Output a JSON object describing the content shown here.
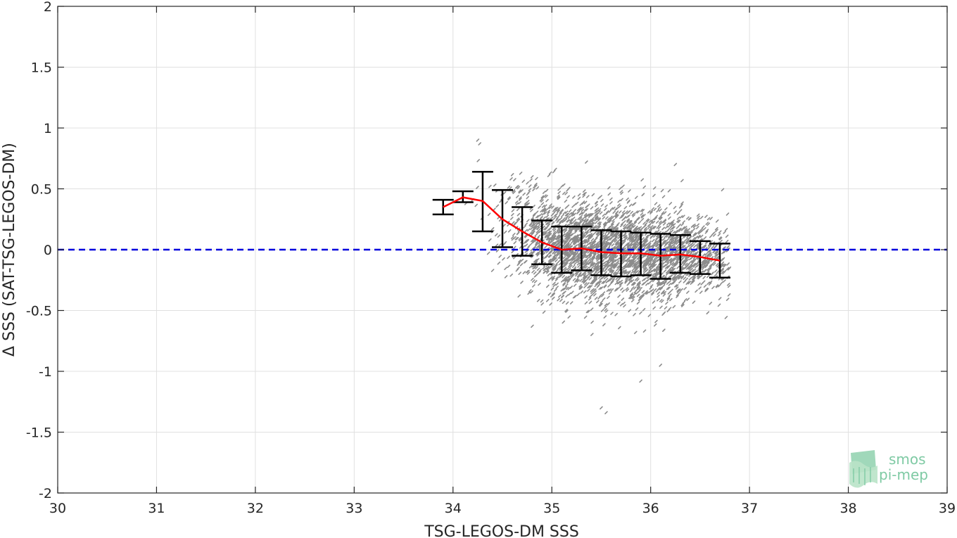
{
  "colors": {
    "scatter": "#8c8c8c",
    "mean_line": "#ff0000",
    "error_bars": "#000000",
    "zero_line": "#0000dd",
    "grid": "#e0e0e0",
    "axis": "#262626",
    "logo": "#7fcaa4"
  },
  "logo": {
    "line1": "smos",
    "line2": "pi-mep"
  },
  "chart_data": {
    "type": "scatter",
    "xlabel": "TSG-LEGOS-DM SSS",
    "ylabel": "Δ SSS (SAT-TSG-LEGOS-DM)",
    "xlim": [
      30,
      39
    ],
    "ylim": [
      -2,
      2
    ],
    "xticks": [
      30,
      31,
      32,
      33,
      34,
      35,
      36,
      37,
      38,
      39
    ],
    "yticks": [
      -2,
      -1.5,
      -1,
      -0.5,
      0,
      0.5,
      1,
      1.5,
      2
    ],
    "xtick_labels": [
      "30",
      "31",
      "32",
      "33",
      "34",
      "35",
      "36",
      "37",
      "38",
      "39"
    ],
    "ytick_labels": [
      "-2",
      "-1.5",
      "-1",
      "-0.5",
      "0",
      "0.5",
      "1",
      "1.5",
      "2"
    ],
    "grid": true,
    "reference_line": {
      "y": 0,
      "style": "dashed"
    },
    "series": [
      {
        "type": "binned_mean_with_std",
        "x": [
          33.9,
          34.1,
          34.3,
          34.5,
          34.7,
          34.9,
          35.1,
          35.3,
          35.5,
          35.7,
          35.9,
          36.1,
          36.3,
          36.5,
          36.7
        ],
        "mean": [
          0.35,
          0.43,
          0.4,
          0.25,
          0.15,
          0.06,
          0.0,
          0.01,
          -0.02,
          -0.03,
          -0.03,
          -0.05,
          -0.04,
          -0.06,
          -0.09
        ],
        "lower": [
          0.29,
          0.39,
          0.15,
          0.02,
          -0.05,
          -0.12,
          -0.19,
          -0.17,
          -0.21,
          -0.22,
          -0.21,
          -0.24,
          -0.19,
          -0.2,
          -0.23
        ],
        "upper": [
          0.41,
          0.48,
          0.64,
          0.49,
          0.35,
          0.24,
          0.19,
          0.19,
          0.16,
          0.15,
          0.14,
          0.13,
          0.12,
          0.07,
          0.05
        ]
      }
    ]
  }
}
